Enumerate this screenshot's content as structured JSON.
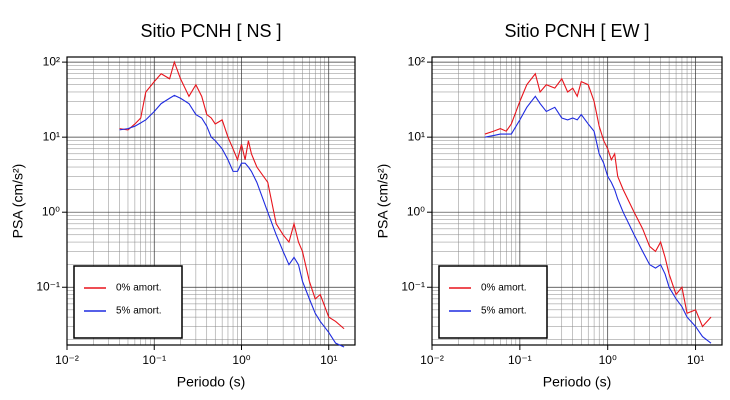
{
  "chart_data": [
    {
      "type": "line",
      "title": "Sitio PCNH [ NS ]",
      "x_label": "Periodo (s)",
      "y_label": "PSA (cm/s²)",
      "x": [
        0.04,
        0.05,
        0.06,
        0.07,
        0.08,
        0.1,
        0.12,
        0.15,
        0.17,
        0.2,
        0.25,
        0.3,
        0.35,
        0.4,
        0.45,
        0.5,
        0.6,
        0.7,
        0.8,
        0.9,
        1.0,
        1.1,
        1.2,
        1.3,
        1.5,
        2,
        2.5,
        3,
        3.5,
        4,
        4.5,
        5,
        6,
        7,
        8,
        10,
        12,
        15
      ],
      "series": [
        {
          "name": "0% amort.",
          "color": "#e8141c",
          "values": [
            13,
            12.5,
            15,
            18,
            40,
            55,
            70,
            60,
            100,
            60,
            35,
            50,
            35,
            20,
            18,
            15,
            17,
            10,
            7,
            5,
            8,
            5,
            9,
            6,
            4,
            2.5,
            0.7,
            0.5,
            0.4,
            0.7,
            0.4,
            0.3,
            0.12,
            0.07,
            0.08,
            0.04,
            0.035,
            0.028
          ]
        },
        {
          "name": "5% amort.",
          "color": "#1f2be0",
          "values": [
            12.5,
            13,
            14,
            15.5,
            17,
            22,
            28,
            33,
            36,
            33,
            28,
            20,
            18,
            14,
            10,
            9,
            7,
            5,
            3.5,
            3.5,
            4.5,
            4.5,
            4,
            3.5,
            2.5,
            1.0,
            0.5,
            0.3,
            0.2,
            0.25,
            0.2,
            0.12,
            0.07,
            0.045,
            0.035,
            0.025,
            0.018,
            0.016
          ]
        }
      ],
      "xlog": true,
      "ylog": true,
      "xlim": [
        0.01,
        20
      ],
      "ylim": [
        0.017,
        117
      ],
      "xticks": [
        {
          "value": 0.01,
          "label": "10⁻²"
        },
        {
          "value": 0.1,
          "label": "10⁻¹"
        },
        {
          "value": 1,
          "label": "10⁰"
        },
        {
          "value": 10,
          "label": "10¹"
        }
      ],
      "yticks": [
        {
          "value": 0.1,
          "label": "10⁻¹"
        },
        {
          "value": 1,
          "label": "10⁰"
        },
        {
          "value": 10,
          "label": "10¹"
        },
        {
          "value": 100,
          "label": "10²"
        }
      ],
      "grid": true,
      "legend": "lower left"
    },
    {
      "type": "line",
      "title": "Sitio PCNH [ EW ]",
      "x_label": "Periodo (s)",
      "y_label": "PSA (cm/s²)",
      "x": [
        0.04,
        0.05,
        0.06,
        0.07,
        0.08,
        0.1,
        0.12,
        0.15,
        0.17,
        0.2,
        0.25,
        0.3,
        0.35,
        0.4,
        0.45,
        0.5,
        0.6,
        0.7,
        0.8,
        0.9,
        1.0,
        1.1,
        1.2,
        1.3,
        1.5,
        2,
        2.5,
        3,
        3.5,
        4,
        4.5,
        5,
        6,
        7,
        8,
        10,
        12,
        15
      ],
      "series": [
        {
          "name": "0% amort.",
          "color": "#e8141c",
          "values": [
            11,
            12,
            13,
            12,
            15,
            30,
            50,
            70,
            40,
            50,
            45,
            60,
            40,
            45,
            35,
            55,
            50,
            30,
            14,
            9,
            7,
            5,
            6,
            3,
            2,
            1.0,
            0.6,
            0.35,
            0.3,
            0.4,
            0.25,
            0.15,
            0.08,
            0.1,
            0.045,
            0.05,
            0.03,
            0.04
          ]
        },
        {
          "name": "5% amort.",
          "color": "#1f2be0",
          "values": [
            10,
            10.5,
            11,
            11,
            11,
            17,
            25,
            35,
            28,
            22,
            25,
            18,
            17,
            18,
            17,
            20,
            15,
            12,
            6,
            4.5,
            3,
            2.5,
            2,
            1.5,
            1.0,
            0.5,
            0.3,
            0.2,
            0.18,
            0.2,
            0.15,
            0.1,
            0.07,
            0.055,
            0.04,
            0.03,
            0.022,
            0.018
          ]
        }
      ],
      "xlog": true,
      "ylog": true,
      "xlim": [
        0.01,
        20
      ],
      "ylim": [
        0.017,
        117
      ],
      "xticks": [
        {
          "value": 0.01,
          "label": "10⁻²"
        },
        {
          "value": 0.1,
          "label": "10⁻¹"
        },
        {
          "value": 1,
          "label": "10⁰"
        },
        {
          "value": 10,
          "label": "10¹"
        }
      ],
      "yticks": [
        {
          "value": 0.1,
          "label": "10⁻¹"
        },
        {
          "value": 1,
          "label": "10⁰"
        },
        {
          "value": 10,
          "label": "10¹"
        },
        {
          "value": 100,
          "label": "10²"
        }
      ],
      "grid": true,
      "legend": "lower left"
    }
  ]
}
